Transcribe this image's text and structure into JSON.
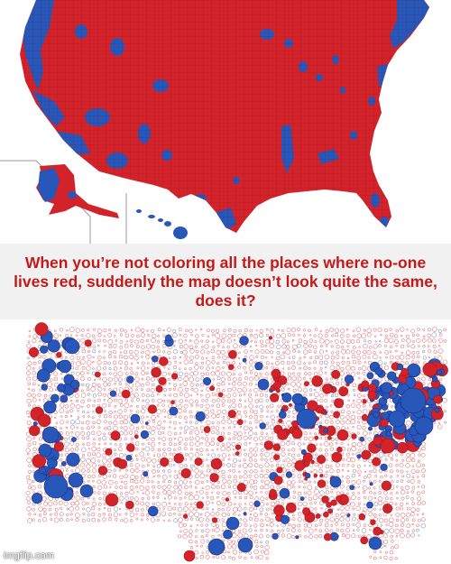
{
  "caption": "When you’re not coloring all the places where no-one lives red, suddenly the map doesn’t look quite the same, does it?",
  "watermark": "imgflip.com",
  "colors": {
    "red": "#d3232a",
    "blue": "#2757b8",
    "dark_red": "#a4161d",
    "dark_blue": "#1b2f8c",
    "caption_text": "#c41a1a",
    "caption_background": "#f1f1f1"
  },
  "maps": [
    {
      "name": "county-map",
      "style": "filled counties, mostly red with blue urban pockets"
    },
    {
      "name": "bubble-map",
      "style": "proportional circles sized by population, red and blue"
    }
  ]
}
